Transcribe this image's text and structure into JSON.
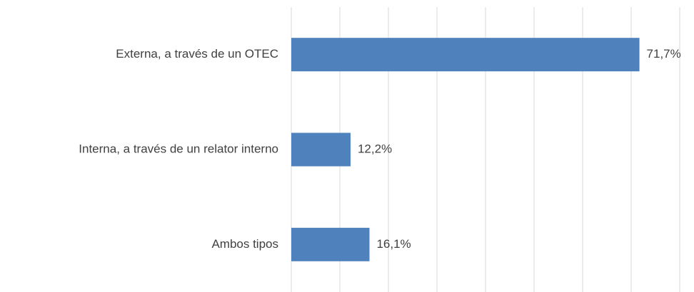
{
  "chart_data": {
    "type": "bar",
    "orientation": "horizontal",
    "categories": [
      "Externa, a través de un OTEC",
      "Interna, a través de un relator interno",
      "Ambos tipos"
    ],
    "values": [
      71.7,
      12.2,
      16.1
    ],
    "value_labels": [
      "71,7%",
      "12,2%",
      "16,1%"
    ],
    "color": "#4f81bd",
    "xlim": [
      0,
      80
    ],
    "xticks": [
      0,
      10,
      20,
      30,
      40,
      50,
      60,
      70,
      80
    ],
    "grid": true
  }
}
